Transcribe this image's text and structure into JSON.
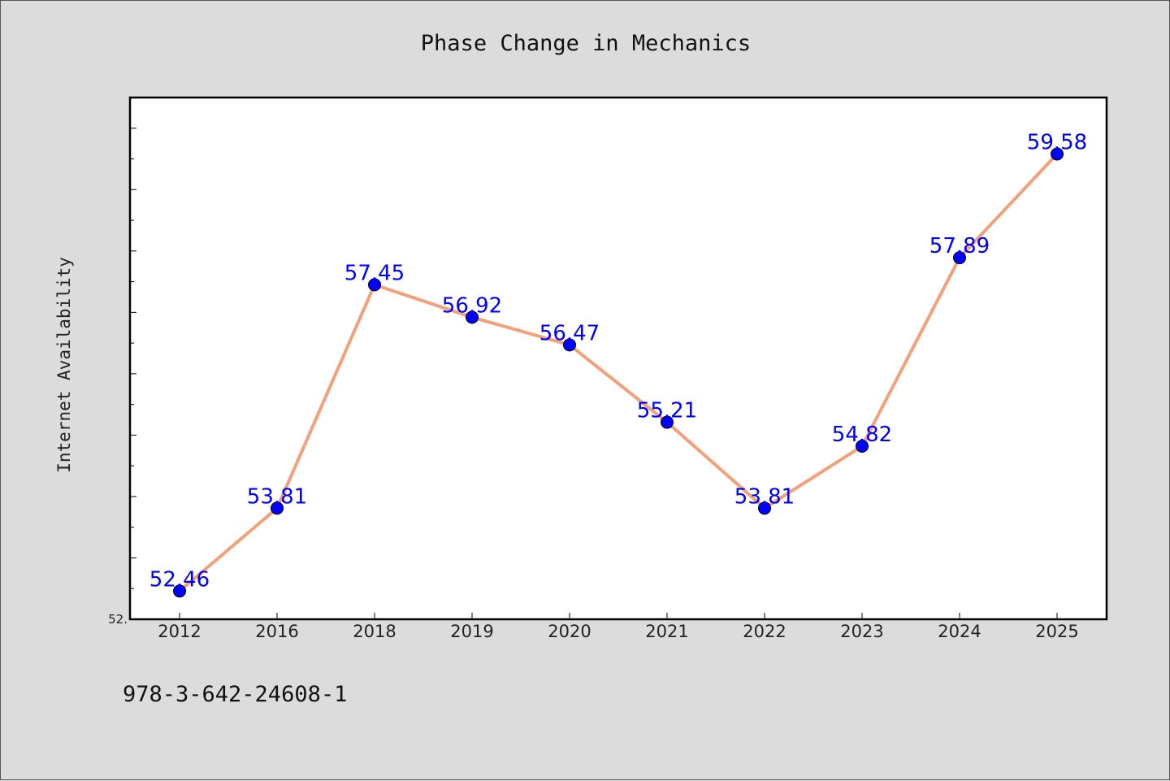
{
  "footer": {
    "code": "978-3-642-24608-1"
  },
  "chart_data": {
    "type": "line",
    "title": "Phase Change in Mechanics",
    "xlabel": "",
    "ylabel": "Internet Availability",
    "categories": [
      "2012",
      "2016",
      "2018",
      "2019",
      "2020",
      "2021",
      "2022",
      "2023",
      "2024",
      "2025"
    ],
    "series": [
      {
        "values": [
          52.46,
          53.81,
          57.45,
          56.92,
          56.47,
          55.21,
          53.81,
          54.82,
          57.89,
          59.58
        ],
        "labels": [
          "52.46",
          "53.81",
          "57.45",
          "56.92",
          "56.47",
          "55.21",
          "53.81",
          "54.82",
          "57.89",
          "59.58"
        ],
        "line_color": "#f4a07a",
        "marker_color": "#0000ff"
      }
    ],
    "ylim": [
      52.0,
      60.5
    ],
    "y_tick_labels": [
      "52."
    ],
    "grid": false,
    "legend": "none"
  }
}
